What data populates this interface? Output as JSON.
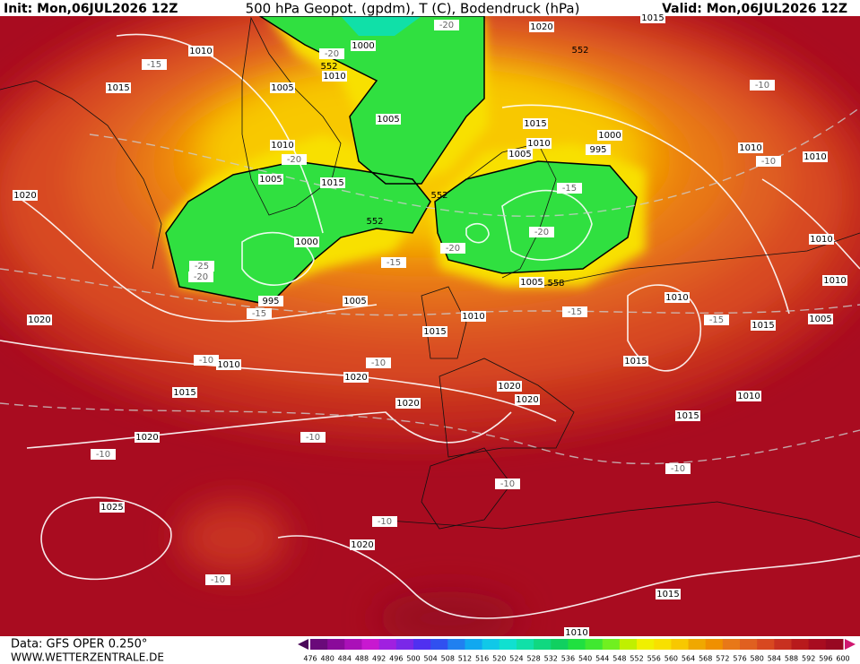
{
  "header": {
    "init": "Init: Mon,06JUL2026 12Z",
    "title": "500 hPa Geopot. (gpdm), T (C), Bodendruck (hPa)",
    "valid": "Valid: Mon,06JUL2026 12Z"
  },
  "footer": {
    "source": "Data: GFS OPER 0.250°",
    "website": "WWW.WETTERZENTRALE.DE"
  },
  "colorbar": {
    "values": [
      476,
      480,
      484,
      488,
      492,
      496,
      500,
      504,
      508,
      512,
      516,
      520,
      524,
      528,
      532,
      536,
      540,
      544,
      548,
      552,
      556,
      560,
      564,
      568,
      572,
      576,
      580,
      584,
      588,
      592,
      596,
      600
    ],
    "colors": [
      "#4b0a5a",
      "#6a0a7a",
      "#8a0a9a",
      "#aa10b8",
      "#c818d0",
      "#a020e0",
      "#7a28e8",
      "#5030f0",
      "#3050f0",
      "#2080f0",
      "#10a8f0",
      "#10c8e8",
      "#10e0d0",
      "#10e0a8",
      "#10d880",
      "#10d060",
      "#20e040",
      "#40e830",
      "#70f020",
      "#c0f000",
      "#f0f000",
      "#f8e000",
      "#f8c800",
      "#f0a800",
      "#f09000",
      "#e87818",
      "#e06020",
      "#d84820",
      "#c83020",
      "#b81a1c",
      "#a80c20",
      "#980822",
      "#d01870"
    ]
  },
  "isobars": [
    "1010",
    "1015",
    "1005",
    "1000",
    "1010",
    "1005",
    "1010",
    "1005",
    "1015",
    "1020",
    "1000",
    "995",
    "1005",
    "1020",
    "1010",
    "1015",
    "1020",
    "1015",
    "1010",
    "1005",
    "1020",
    "1020",
    "1020",
    "1020",
    "1025",
    "1020",
    "1015",
    "1010",
    "1015",
    "1010",
    "1005",
    "1000",
    "995",
    "1020",
    "1015",
    "1010",
    "1015",
    "1015",
    "1010",
    "1015",
    "1005",
    "1010",
    "1010",
    "1010",
    "1010"
  ],
  "temperatures": [
    "-15",
    "-20",
    "-20",
    "-20",
    "-15",
    "-20",
    "-20",
    "-15",
    "-25",
    "-20",
    "-15",
    "-15",
    "-15",
    "-10",
    "-10",
    "-10",
    "-10",
    "-10",
    "-10",
    "-10",
    "-10",
    "-10",
    "-10"
  ],
  "heights": [
    "552",
    "552",
    "552",
    "552",
    "558"
  ]
}
